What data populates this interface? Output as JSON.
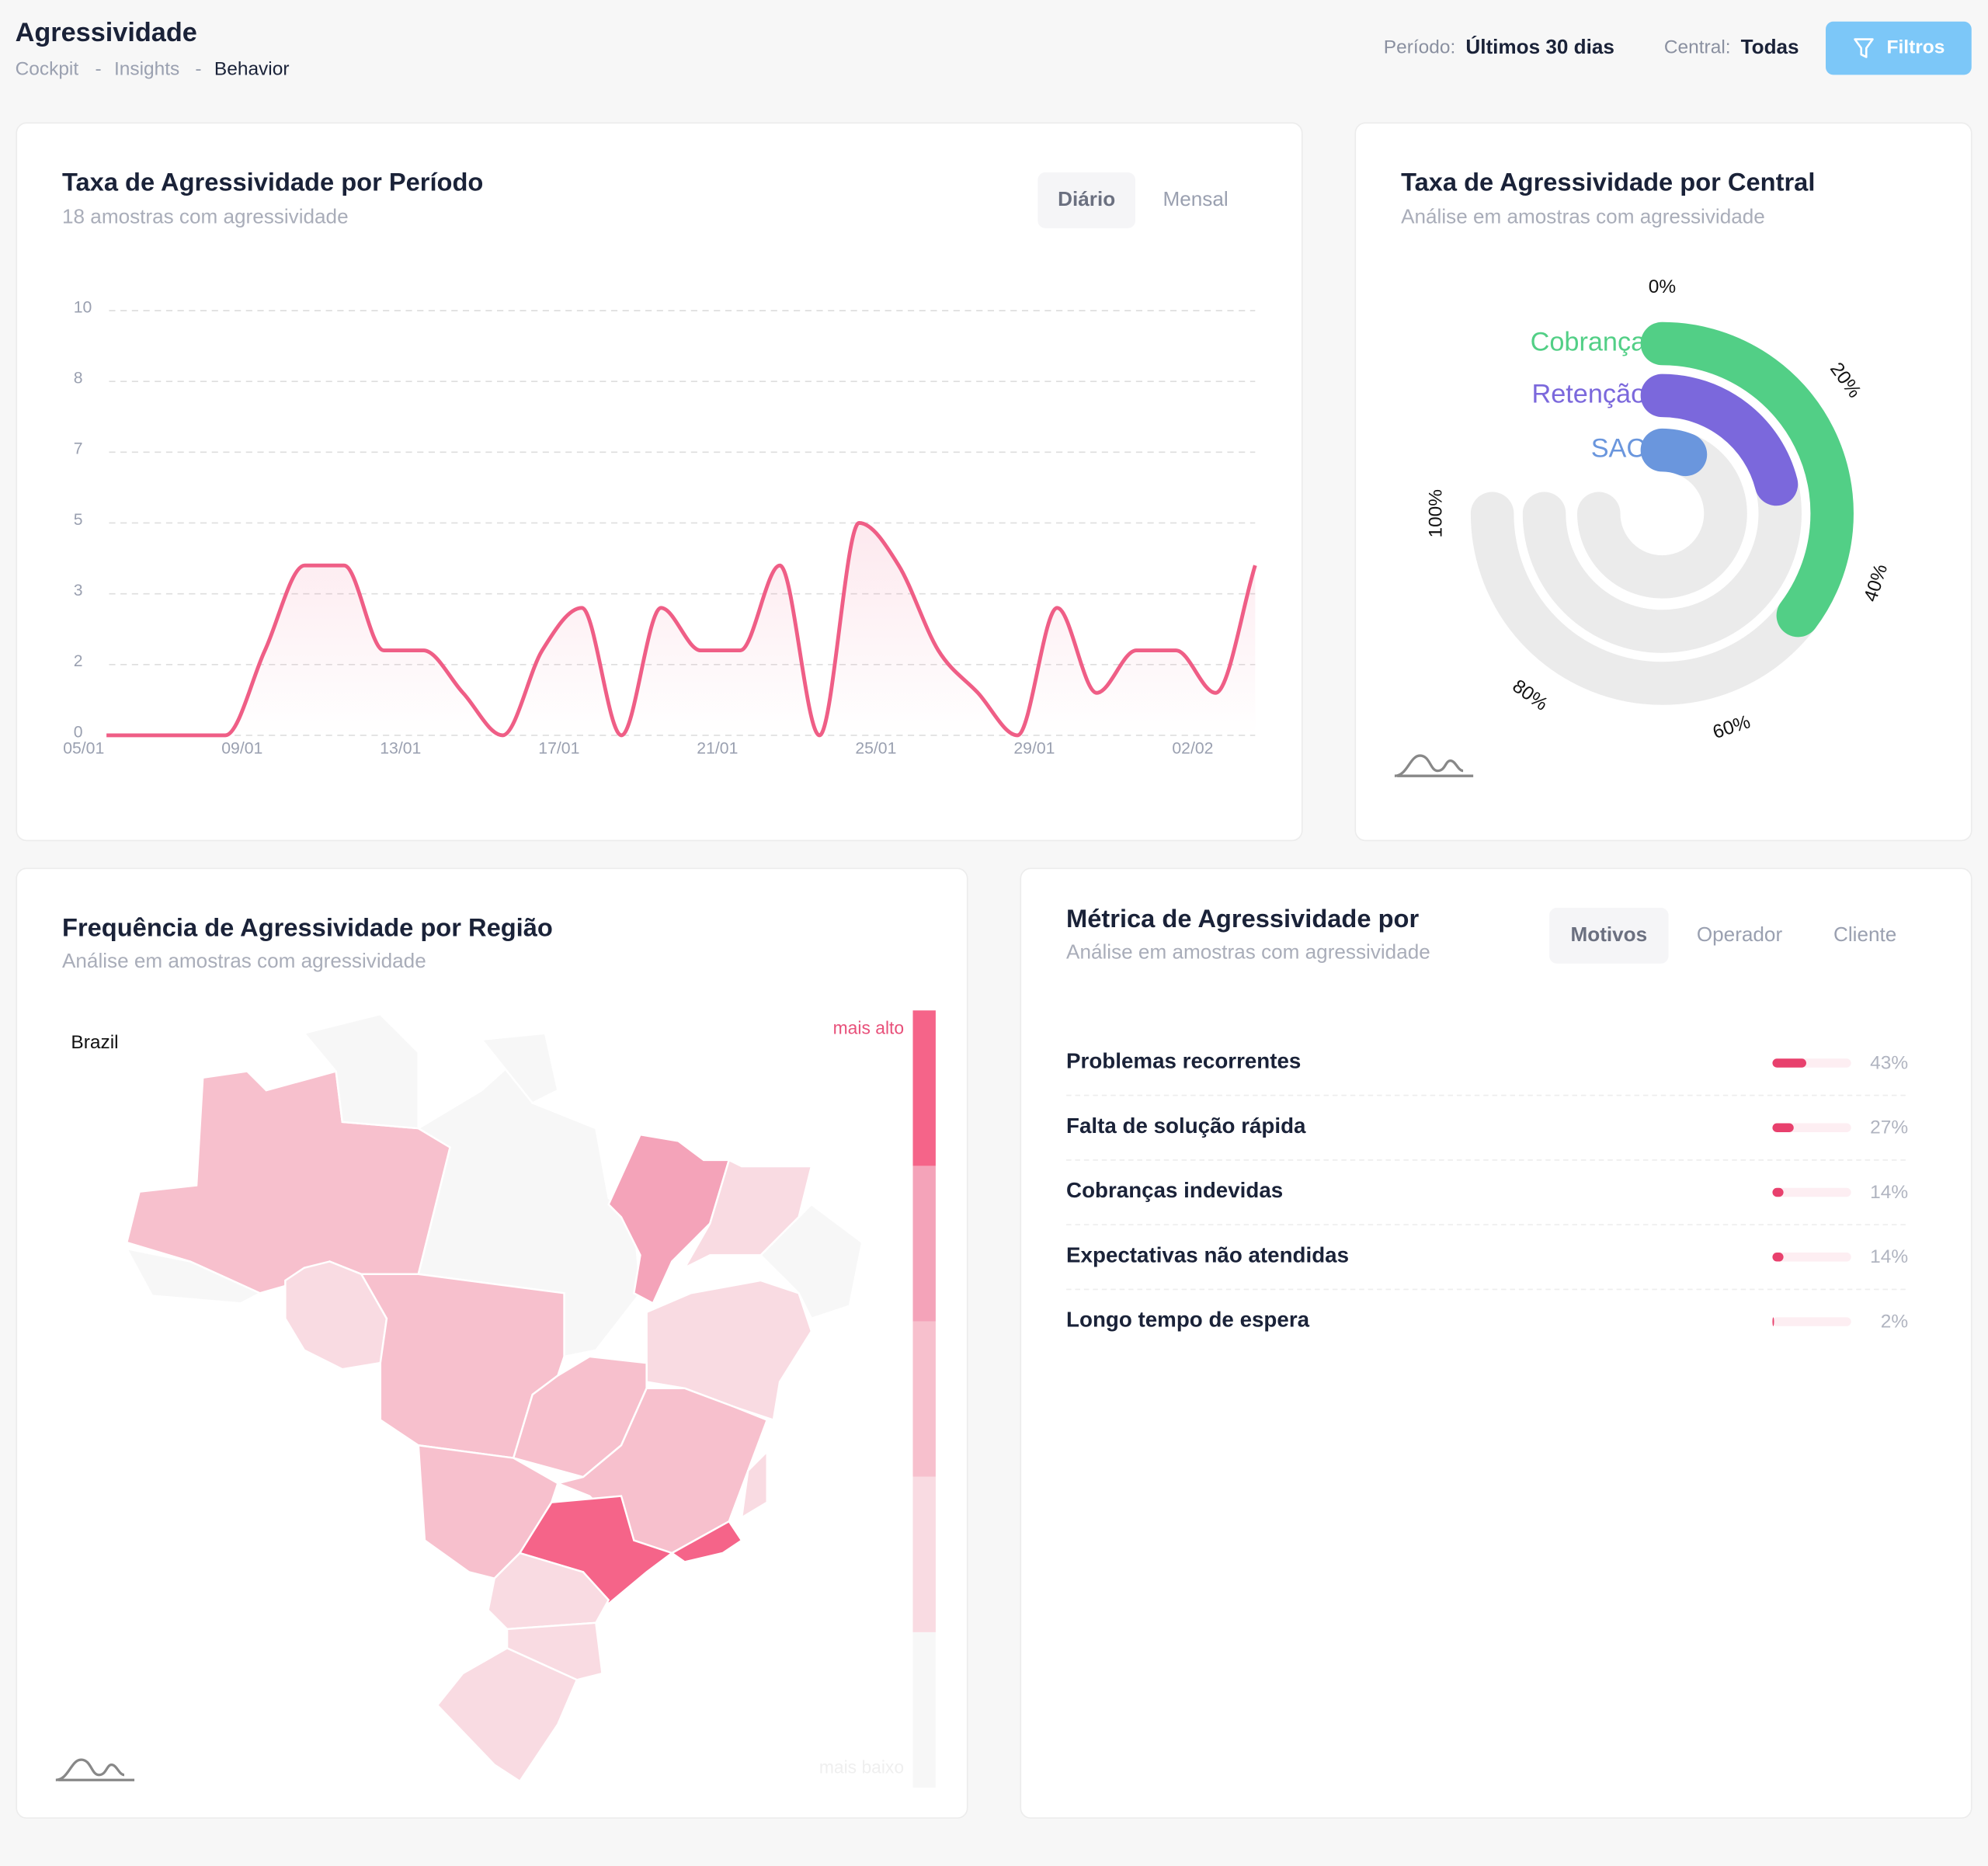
{
  "header": {
    "title": "Agressividade",
    "breadcrumb": [
      "Cockpit",
      "Insights",
      "Behavior"
    ],
    "separator": "-",
    "filters": [
      {
        "label": "Período:",
        "value": "Últimos 30 dias"
      },
      {
        "label": "Central:",
        "value": "Todas"
      }
    ],
    "button": "Filtros"
  },
  "period": {
    "tabs": [
      "Diário",
      "Mensal"
    ],
    "active": 0,
    "chart_data": {
      "type": "line",
      "title": "Taxa de Agressividade por Período",
      "subtitle": "18 amostras com agressividade",
      "categories": [
        "05/01",
        null,
        null,
        null,
        "09/01",
        null,
        null,
        null,
        "13/01",
        null,
        null,
        null,
        "17/01",
        null,
        null,
        null,
        "21/01",
        null,
        null,
        null,
        "25/01",
        null,
        null,
        null,
        "29/01",
        null,
        null,
        null,
        "02/02",
        null
      ],
      "series": [
        {
          "name": "Taxa",
          "color": "#ef5e86",
          "values": [
            0,
            0,
            0,
            0,
            2,
            4,
            4,
            2,
            2,
            1,
            0,
            2,
            3,
            0,
            3,
            2,
            2,
            4,
            0,
            5,
            4,
            2,
            1,
            0,
            3,
            1,
            2,
            2,
            1,
            4
          ]
        }
      ],
      "ylim": [
        0,
        10
      ],
      "yticks": [
        0,
        {
          "value": 1.667,
          "label": "2"
        },
        {
          "value": 3.333,
          "label": "3"
        },
        5,
        {
          "value": 6.667,
          "label": "7"
        },
        {
          "value": 8.333,
          "label": "8"
        },
        10
      ],
      "grid": true
    }
  },
  "central": {
    "chart_data": {
      "type": "radial",
      "title": "Taxa de Agressividade por Central",
      "subtitle": "Análise em amostras com agressividade",
      "series": [
        {
          "name": "Cobrança",
          "color": "#52cf86",
          "values": [
            47
          ]
        },
        {
          "name": "Retenção",
          "color": "#7b68dc",
          "values": [
            28
          ]
        },
        {
          "name": "SAC",
          "color": "#6a96dd",
          "values": [
            8
          ]
        }
      ],
      "xlim": [
        0,
        100
      ],
      "xticks": [
        {
          "value": 0,
          "label": "0%"
        },
        {
          "value": 20,
          "label": "20%"
        },
        {
          "value": 40,
          "label": "40%"
        },
        {
          "value": 60,
          "label": "60%"
        },
        {
          "value": 80,
          "label": "80%"
        },
        {
          "value": 100,
          "label": "100%"
        }
      ]
    }
  },
  "region": {
    "chart_data": {
      "type": "map",
      "title": "Frequência de Agressividade por Região",
      "subtitle": "Análise em amostras com agressividade",
      "map_title": "Brazil",
      "legend_high": "mais alto",
      "legend_low": "mais baixo",
      "colors": [
        "#f7f7f7",
        "#f9dbe2",
        "#f7c0cd",
        "#f4a3b9",
        "#f56489"
      ],
      "values": [
        2,
        0,
        1,
        0,
        0,
        0,
        2,
        3,
        1,
        0,
        1,
        2,
        2,
        2,
        4,
        4,
        1,
        1,
        1,
        1
      ]
    }
  },
  "metric": {
    "title": "Métrica de Agressividade por",
    "subtitle": "Análise em amostras com agressividade",
    "tabs": [
      "Motivos",
      "Operador",
      "Cliente"
    ],
    "active": 0,
    "chart_data": {
      "type": "hbar",
      "color": "#e8406d",
      "track_color": "#fdeef2",
      "xlim": [
        0,
        100
      ],
      "categories": [
        "Problemas recorrentes",
        "Falta de solução rápida",
        "Cobranças indevidas",
        "Expectativas não atendidas",
        "Longo tempo de espera"
      ],
      "values": [
        43,
        27,
        14,
        14,
        2
      ],
      "value_labels": [
        "43%",
        "27%",
        "14%",
        "14%",
        "2%"
      ]
    }
  }
}
